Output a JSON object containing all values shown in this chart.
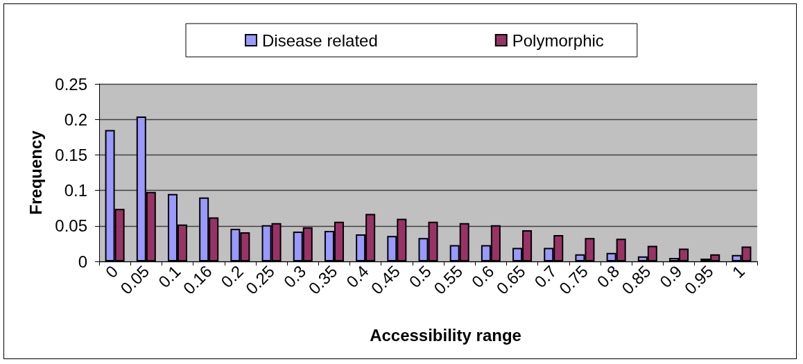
{
  "chart_data": {
    "type": "bar",
    "xlabel": "Accessibility range",
    "ylabel": "Frequency",
    "categories": [
      "0",
      "0.05",
      "0.1",
      "0.16",
      "0.2",
      "0.25",
      "0.3",
      "0.35",
      "0.4",
      "0.45",
      "0.5",
      "0.55",
      "0.6",
      "0.65",
      "0.7",
      "0.75",
      "0.8",
      "0.85",
      "0.9",
      "0.95",
      "1"
    ],
    "series": [
      {
        "name": "Disease related",
        "color": "#9999ff",
        "values": [
          0.185,
          0.204,
          0.095,
          0.09,
          0.046,
          0.051,
          0.042,
          0.043,
          0.038,
          0.036,
          0.033,
          0.023,
          0.023,
          0.019,
          0.019,
          0.01,
          0.012,
          0.007,
          0.005,
          0.004,
          0.009
        ]
      },
      {
        "name": "Polymorphic",
        "color": "#993366",
        "values": [
          0.074,
          0.098,
          0.052,
          0.062,
          0.041,
          0.054,
          0.048,
          0.056,
          0.067,
          0.06,
          0.056,
          0.054,
          0.051,
          0.044,
          0.037,
          0.033,
          0.032,
          0.022,
          0.018,
          0.01,
          0.021
        ]
      }
    ],
    "ylim": [
      0,
      0.25
    ],
    "yticks": [
      0,
      0.05,
      0.1,
      0.15,
      0.2,
      0.25
    ],
    "grid": "y",
    "legend": "top"
  }
}
